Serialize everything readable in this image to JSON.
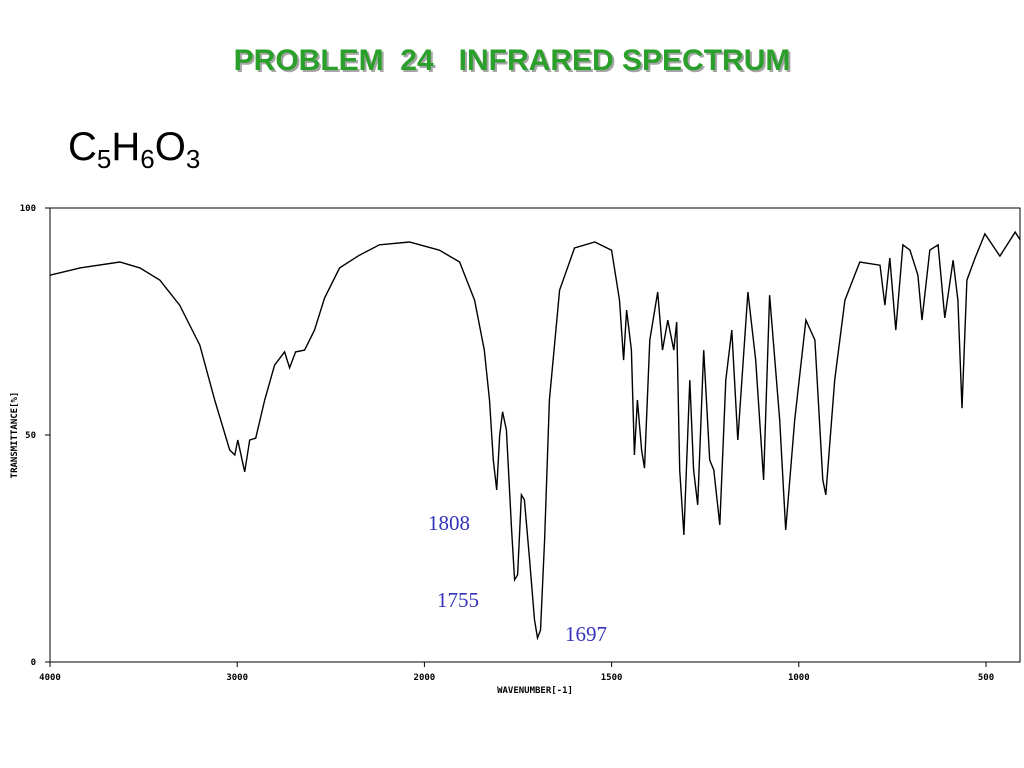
{
  "chart_data": {
    "type": "line",
    "title": "PROBLEM  24   INFRARED SPECTRUM",
    "formula": [
      "C",
      "5",
      "H",
      "6",
      "O",
      "3"
    ],
    "x_label": "WAVENUMBER[-1]",
    "y_label": "TRANSMITTANCE[%]",
    "xlim": [
      4000,
      400
    ],
    "ylim": [
      0,
      100
    ],
    "xticks": [
      4000,
      3000,
      2000,
      1500,
      1000,
      500
    ],
    "yticks": [
      0,
      50,
      100
    ],
    "annotations": [
      "1808",
      "1755",
      "1697"
    ],
    "series": [
      {
        "name": "IR spectrum",
        "color": "#000000",
        "x": [
          4000,
          3840,
          3627,
          3520,
          3413,
          3307,
          3200,
          3120,
          3040,
          3013,
          2997,
          2976,
          2960,
          2933,
          2901,
          2853,
          2800,
          2747,
          2720,
          2688,
          2640,
          2587,
          2533,
          2453,
          2347,
          2240,
          2080,
          1960,
          1906,
          1866,
          1840,
          1826,
          1816,
          1807,
          1799,
          1791,
          1781,
          1767,
          1759,
          1751,
          1741,
          1733,
          1719,
          1706,
          1698,
          1690,
          1679,
          1666,
          1639,
          1599,
          1545,
          1500,
          1479,
          1468,
          1460,
          1447,
          1439,
          1431,
          1420,
          1412,
          1398,
          1377,
          1364,
          1350,
          1334,
          1326,
          1318,
          1307,
          1291,
          1281,
          1270,
          1254,
          1238,
          1227,
          1211,
          1195,
          1179,
          1163,
          1136,
          1115,
          1094,
          1078,
          1051,
          1035,
          1011,
          981,
          957,
          936,
          928,
          904,
          877,
          837,
          783,
          770,
          757,
          741,
          722,
          703,
          682,
          671,
          650,
          628,
          610,
          588,
          575,
          564,
          551,
          529,
          503,
          463,
          422,
          409
        ],
        "values": [
          85.2,
          86.8,
          88.1,
          86.8,
          84.1,
          78.6,
          69.8,
          57.7,
          46.7,
          45.6,
          48.9,
          44.9,
          41.9,
          48.9,
          49.3,
          57.7,
          65.4,
          68.3,
          64.8,
          68.3,
          68.7,
          73.1,
          80.2,
          86.8,
          89.6,
          91.9,
          92.5,
          90.7,
          88.1,
          79.7,
          68.7,
          57.7,
          44.5,
          37.9,
          50,
          55.1,
          51.1,
          29.1,
          18.1,
          19.2,
          36.8,
          35.7,
          22.5,
          9.3,
          5.3,
          7,
          26.9,
          57.7,
          81.9,
          91.2,
          92.5,
          90.7,
          79.7,
          66.5,
          77.5,
          68.7,
          45.6,
          57.7,
          46.7,
          42.7,
          70.9,
          81.5,
          68.7,
          75.3,
          68.7,
          74.9,
          42.3,
          28,
          62.1,
          42.3,
          34.6,
          68.7,
          44.5,
          42.3,
          30.2,
          62.1,
          73.1,
          48.9,
          81.5,
          66.5,
          40.1,
          80.8,
          53.3,
          29.1,
          53.3,
          75.3,
          70.9,
          40.1,
          36.8,
          62.1,
          79.7,
          88.1,
          87.4,
          78.6,
          89,
          73.1,
          91.9,
          90.7,
          85.2,
          75.3,
          90.7,
          91.9,
          75.8,
          88.5,
          79.7,
          55.9,
          84.1,
          89,
          94.3,
          89.4,
          94.7,
          93
        ]
      }
    ]
  }
}
